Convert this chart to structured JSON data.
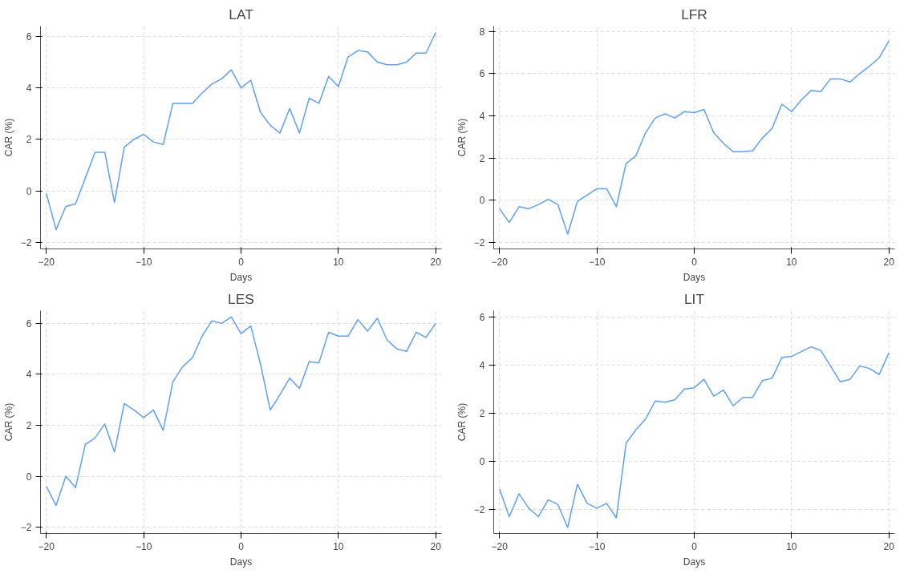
{
  "chart_data": [
    {
      "type": "line",
      "title": "LAT",
      "xlabel": "Days",
      "ylabel": "CAR (%)",
      "xlim": [
        -20.6,
        20.6
      ],
      "xticks": [
        -20,
        -10,
        0,
        10,
        20
      ],
      "ylim": [
        -2.25,
        6.4
      ],
      "yticks": [
        -2,
        0,
        2,
        4,
        6
      ],
      "grid": true,
      "line_style": "solid",
      "x": [
        -20,
        -19,
        -18,
        -17,
        -16,
        -15,
        -14,
        -13,
        -12,
        -11,
        -10,
        -9,
        -8,
        -7,
        -6,
        -5,
        -4,
        -3,
        -2,
        -1,
        0,
        1,
        2,
        3,
        4,
        5,
        6,
        7,
        8,
        9,
        10,
        11,
        12,
        13,
        14,
        15,
        16,
        17,
        18,
        19,
        20
      ],
      "series": [
        {
          "color": "#5aa0ff",
          "values": [
            -0.1,
            -1.5,
            -0.6,
            -0.5,
            0.5,
            1.5,
            1.5,
            -0.45,
            1.7,
            2.0,
            2.2,
            1.9,
            1.8,
            3.4,
            3.4,
            3.4,
            3.8,
            4.15,
            4.35,
            4.7,
            4.0,
            4.3,
            3.05,
            2.55,
            2.25,
            3.2,
            2.25,
            3.6,
            3.4,
            4.45,
            4.05,
            5.2,
            5.45,
            5.4,
            5.0,
            4.9,
            4.9,
            5.0,
            5.35,
            5.35,
            6.15
          ]
        }
      ]
    },
    {
      "type": "line",
      "title": "LFR",
      "xlabel": "Days",
      "ylabel": "CAR (%)",
      "xlim": [
        -20.6,
        20.6
      ],
      "xticks": [
        -20,
        -10,
        0,
        10,
        20
      ],
      "ylim": [
        -2.3,
        8.25
      ],
      "yticks": [
        -2,
        0,
        2,
        4,
        6,
        8
      ],
      "grid": true,
      "line_style": "solid",
      "x": [
        -20,
        -19,
        -18,
        -17,
        -16,
        -15,
        -14,
        -13,
        -12,
        -11,
        -10,
        -9,
        -8,
        -7,
        -6,
        -5,
        -4,
        -3,
        -2,
        -1,
        0,
        1,
        2,
        3,
        4,
        5,
        6,
        7,
        8,
        9,
        10,
        11,
        12,
        13,
        14,
        15,
        16,
        17,
        18,
        19,
        20
      ],
      "series": [
        {
          "color": "#5aa0ff",
          "values": [
            -0.4,
            -1.05,
            -0.3,
            -0.4,
            -0.2,
            0.05,
            -0.2,
            -1.6,
            -0.05,
            0.25,
            0.55,
            0.55,
            -0.3,
            1.75,
            2.1,
            3.2,
            3.9,
            4.1,
            3.9,
            4.2,
            4.15,
            4.3,
            3.2,
            2.7,
            2.3,
            2.3,
            2.35,
            2.95,
            3.4,
            4.55,
            4.2,
            4.75,
            5.2,
            5.15,
            5.75,
            5.75,
            5.6,
            6.0,
            6.35,
            6.75,
            7.55
          ]
        }
      ]
    },
    {
      "type": "line",
      "title": "LES",
      "xlabel": "Days",
      "ylabel": "CAR (%)",
      "xlim": [
        -20.6,
        20.6
      ],
      "xticks": [
        -20,
        -10,
        0,
        10,
        20
      ],
      "ylim": [
        -2.25,
        6.5
      ],
      "yticks": [
        -2,
        0,
        2,
        4,
        6
      ],
      "grid": true,
      "line_style": "solid",
      "x": [
        -20,
        -19,
        -18,
        -17,
        -16,
        -15,
        -14,
        -13,
        -12,
        -11,
        -10,
        -9,
        -8,
        -7,
        -6,
        -5,
        -4,
        -3,
        -2,
        -1,
        0,
        1,
        2,
        3,
        4,
        5,
        6,
        7,
        8,
        9,
        10,
        11,
        12,
        13,
        14,
        15,
        16,
        17,
        18,
        19,
        20
      ],
      "series": [
        {
          "color": "#5aa0ff",
          "values": [
            -0.4,
            -1.15,
            0.0,
            -0.45,
            1.25,
            1.5,
            2.05,
            0.95,
            2.85,
            2.6,
            2.3,
            2.6,
            1.8,
            3.7,
            4.3,
            4.65,
            5.5,
            6.1,
            6.0,
            6.25,
            5.6,
            5.9,
            4.4,
            2.6,
            3.2,
            3.85,
            3.45,
            4.5,
            4.45,
            5.65,
            5.5,
            5.5,
            6.15,
            5.7,
            6.2,
            5.35,
            5.0,
            4.9,
            5.65,
            5.45,
            6.0
          ]
        }
      ]
    },
    {
      "type": "line",
      "title": "LIT",
      "xlabel": "Days",
      "ylabel": "CAR (%)",
      "xlim": [
        -20.6,
        20.6
      ],
      "xticks": [
        -20,
        -10,
        0,
        10,
        20
      ],
      "ylim": [
        -3.0,
        6.25
      ],
      "yticks": [
        -2,
        0,
        2,
        4,
        6
      ],
      "grid": true,
      "line_style": "solid",
      "x": [
        -20,
        -19,
        -18,
        -17,
        -16,
        -15,
        -14,
        -13,
        -12,
        -11,
        -10,
        -9,
        -8,
        -7,
        -6,
        -5,
        -4,
        -3,
        -2,
        -1,
        0,
        1,
        2,
        3,
        4,
        5,
        6,
        7,
        8,
        9,
        10,
        11,
        12,
        13,
        14,
        15,
        16,
        17,
        18,
        19,
        20
      ],
      "series": [
        {
          "color": "#5aa0ff",
          "values": [
            -1.15,
            -2.3,
            -1.35,
            -1.95,
            -2.3,
            -1.6,
            -1.8,
            -2.75,
            -0.95,
            -1.75,
            -1.95,
            -1.75,
            -2.35,
            0.75,
            1.3,
            1.75,
            2.5,
            2.45,
            2.55,
            3.0,
            3.05,
            3.4,
            2.7,
            2.95,
            2.3,
            2.65,
            2.65,
            3.35,
            3.45,
            4.3,
            4.35,
            4.55,
            4.75,
            4.6,
            3.95,
            3.3,
            3.4,
            3.95,
            3.85,
            3.6,
            4.5
          ]
        }
      ]
    }
  ]
}
